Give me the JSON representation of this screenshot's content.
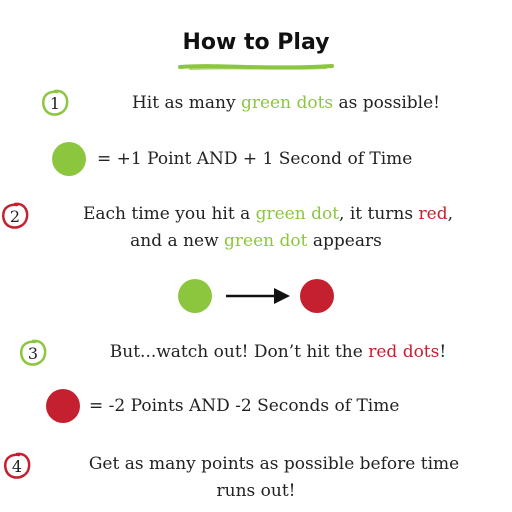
{
  "title": "How to Play",
  "colors": {
    "green": "#8cc63f",
    "red": "#c4202f"
  },
  "steps": [
    {
      "number": "1",
      "parts": [
        "Hit as many ",
        "green dots",
        " as possible!"
      ]
    },
    {
      "number": "2",
      "line1": [
        "Each time you hit a ",
        "green dot",
        ", it turns ",
        "red",
        ","
      ],
      "line2": [
        "and a new ",
        "green dot",
        " appears"
      ]
    },
    {
      "number": "3",
      "parts": [
        "But...watch out! Don’t hit the ",
        "red dots",
        "!"
      ]
    },
    {
      "number": "4",
      "line1": "Get as many points as possible before time",
      "line2": "runs out!"
    }
  ],
  "legend": {
    "green": "= +1 Point AND + 1 Second of Time",
    "red": "= -2 Points AND -2 Seconds of Time"
  },
  "icons": {
    "step_badge": "scribble-circle-icon",
    "arrow": "right-arrow-icon",
    "underline": "brush-underline-icon"
  }
}
